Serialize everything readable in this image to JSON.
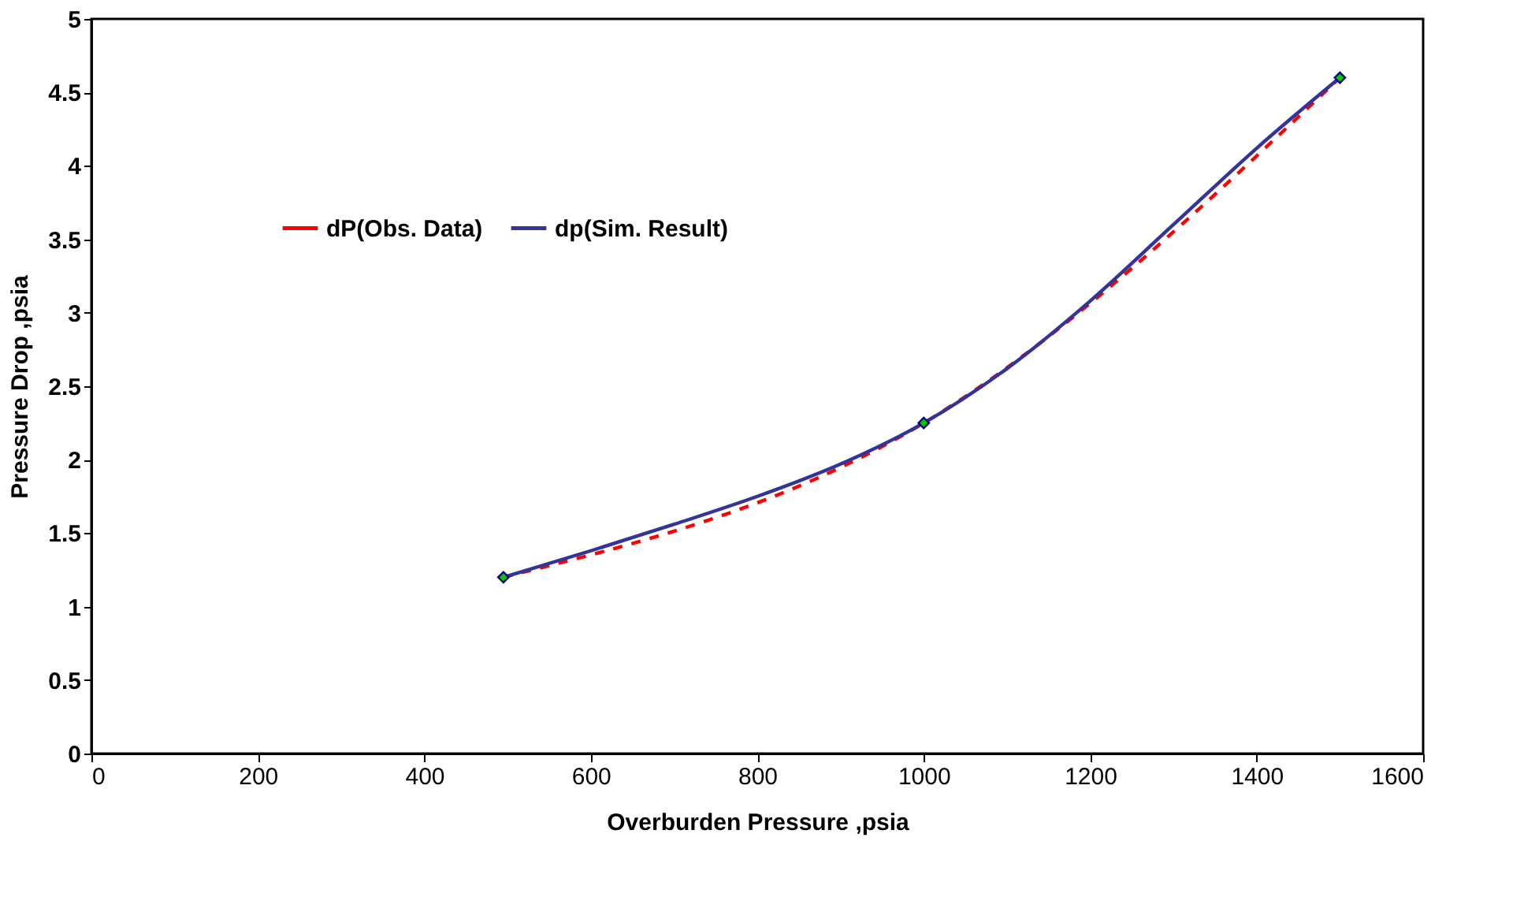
{
  "chart_data": {
    "type": "line",
    "xlabel": "Overburden Pressure ,psia",
    "ylabel": "Pressure Drop ,psia",
    "xlim": [
      0,
      1600
    ],
    "xticks": [
      0,
      200,
      400,
      600,
      800,
      1000,
      1200,
      1400,
      1600
    ],
    "ylim": [
      0,
      5
    ],
    "yticks": [
      0,
      0.5,
      1,
      1.5,
      2,
      2.5,
      3,
      3.5,
      4,
      4.5,
      5
    ],
    "grid": false,
    "legend": "top left",
    "series": [
      {
        "name": "dP(Obs. Data)",
        "color": "#ff0000",
        "line_style": "dashed",
        "marker": "diamond",
        "x": [
          495,
          1000,
          1500
        ],
        "values": [
          1.2,
          2.25,
          4.6
        ]
      },
      {
        "name": "dp(Sim. Result)",
        "color": "#333399",
        "line_style": "solid",
        "marker": "none",
        "x": [
          495,
          600,
          700,
          800,
          900,
          1000,
          1100,
          1200,
          1300,
          1400,
          1500
        ],
        "values": [
          1.2,
          1.38,
          1.56,
          1.75,
          1.97,
          2.25,
          2.62,
          3.08,
          3.6,
          4.12,
          4.6
        ]
      }
    ]
  }
}
